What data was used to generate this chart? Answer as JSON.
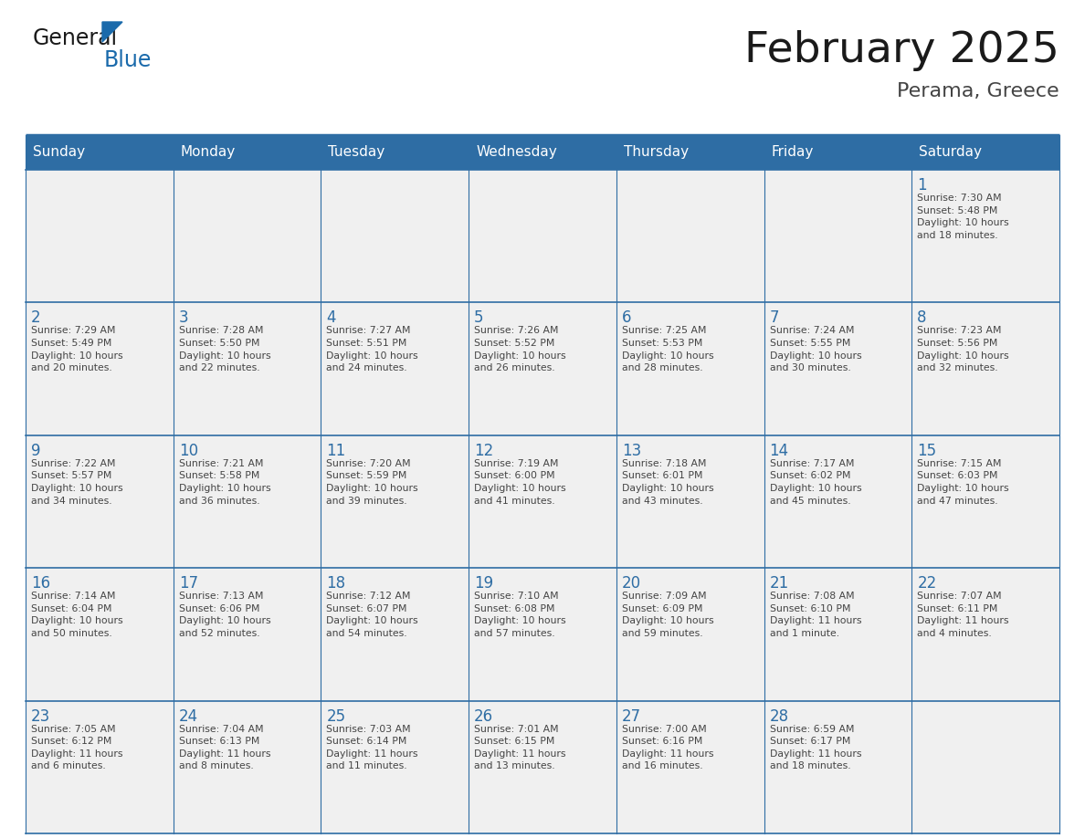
{
  "title": "February 2025",
  "subtitle": "Perama, Greece",
  "days_of_week": [
    "Sunday",
    "Monday",
    "Tuesday",
    "Wednesday",
    "Thursday",
    "Friday",
    "Saturday"
  ],
  "header_bg_color": "#2E6DA4",
  "header_text_color": "#FFFFFF",
  "cell_bg_color": "#F0F0F0",
  "day_num_color": "#2E6DA4",
  "info_text_color": "#444444",
  "border_color": "#2E6DA4",
  "title_color": "#1a1a1a",
  "subtitle_color": "#444444",
  "weeks": [
    [
      {
        "day": null,
        "info": null
      },
      {
        "day": null,
        "info": null
      },
      {
        "day": null,
        "info": null
      },
      {
        "day": null,
        "info": null
      },
      {
        "day": null,
        "info": null
      },
      {
        "day": null,
        "info": null
      },
      {
        "day": 1,
        "info": "Sunrise: 7:30 AM\nSunset: 5:48 PM\nDaylight: 10 hours\nand 18 minutes."
      }
    ],
    [
      {
        "day": 2,
        "info": "Sunrise: 7:29 AM\nSunset: 5:49 PM\nDaylight: 10 hours\nand 20 minutes."
      },
      {
        "day": 3,
        "info": "Sunrise: 7:28 AM\nSunset: 5:50 PM\nDaylight: 10 hours\nand 22 minutes."
      },
      {
        "day": 4,
        "info": "Sunrise: 7:27 AM\nSunset: 5:51 PM\nDaylight: 10 hours\nand 24 minutes."
      },
      {
        "day": 5,
        "info": "Sunrise: 7:26 AM\nSunset: 5:52 PM\nDaylight: 10 hours\nand 26 minutes."
      },
      {
        "day": 6,
        "info": "Sunrise: 7:25 AM\nSunset: 5:53 PM\nDaylight: 10 hours\nand 28 minutes."
      },
      {
        "day": 7,
        "info": "Sunrise: 7:24 AM\nSunset: 5:55 PM\nDaylight: 10 hours\nand 30 minutes."
      },
      {
        "day": 8,
        "info": "Sunrise: 7:23 AM\nSunset: 5:56 PM\nDaylight: 10 hours\nand 32 minutes."
      }
    ],
    [
      {
        "day": 9,
        "info": "Sunrise: 7:22 AM\nSunset: 5:57 PM\nDaylight: 10 hours\nand 34 minutes."
      },
      {
        "day": 10,
        "info": "Sunrise: 7:21 AM\nSunset: 5:58 PM\nDaylight: 10 hours\nand 36 minutes."
      },
      {
        "day": 11,
        "info": "Sunrise: 7:20 AM\nSunset: 5:59 PM\nDaylight: 10 hours\nand 39 minutes."
      },
      {
        "day": 12,
        "info": "Sunrise: 7:19 AM\nSunset: 6:00 PM\nDaylight: 10 hours\nand 41 minutes."
      },
      {
        "day": 13,
        "info": "Sunrise: 7:18 AM\nSunset: 6:01 PM\nDaylight: 10 hours\nand 43 minutes."
      },
      {
        "day": 14,
        "info": "Sunrise: 7:17 AM\nSunset: 6:02 PM\nDaylight: 10 hours\nand 45 minutes."
      },
      {
        "day": 15,
        "info": "Sunrise: 7:15 AM\nSunset: 6:03 PM\nDaylight: 10 hours\nand 47 minutes."
      }
    ],
    [
      {
        "day": 16,
        "info": "Sunrise: 7:14 AM\nSunset: 6:04 PM\nDaylight: 10 hours\nand 50 minutes."
      },
      {
        "day": 17,
        "info": "Sunrise: 7:13 AM\nSunset: 6:06 PM\nDaylight: 10 hours\nand 52 minutes."
      },
      {
        "day": 18,
        "info": "Sunrise: 7:12 AM\nSunset: 6:07 PM\nDaylight: 10 hours\nand 54 minutes."
      },
      {
        "day": 19,
        "info": "Sunrise: 7:10 AM\nSunset: 6:08 PM\nDaylight: 10 hours\nand 57 minutes."
      },
      {
        "day": 20,
        "info": "Sunrise: 7:09 AM\nSunset: 6:09 PM\nDaylight: 10 hours\nand 59 minutes."
      },
      {
        "day": 21,
        "info": "Sunrise: 7:08 AM\nSunset: 6:10 PM\nDaylight: 11 hours\nand 1 minute."
      },
      {
        "day": 22,
        "info": "Sunrise: 7:07 AM\nSunset: 6:11 PM\nDaylight: 11 hours\nand 4 minutes."
      }
    ],
    [
      {
        "day": 23,
        "info": "Sunrise: 7:05 AM\nSunset: 6:12 PM\nDaylight: 11 hours\nand 6 minutes."
      },
      {
        "day": 24,
        "info": "Sunrise: 7:04 AM\nSunset: 6:13 PM\nDaylight: 11 hours\nand 8 minutes."
      },
      {
        "day": 25,
        "info": "Sunrise: 7:03 AM\nSunset: 6:14 PM\nDaylight: 11 hours\nand 11 minutes."
      },
      {
        "day": 26,
        "info": "Sunrise: 7:01 AM\nSunset: 6:15 PM\nDaylight: 11 hours\nand 13 minutes."
      },
      {
        "day": 27,
        "info": "Sunrise: 7:00 AM\nSunset: 6:16 PM\nDaylight: 11 hours\nand 16 minutes."
      },
      {
        "day": 28,
        "info": "Sunrise: 6:59 AM\nSunset: 6:17 PM\nDaylight: 11 hours\nand 18 minutes."
      },
      {
        "day": null,
        "info": null
      }
    ]
  ],
  "logo_text1": "General",
  "logo_text2": "Blue",
  "logo_color1": "#1a1a1a",
  "logo_color2": "#1a6aab",
  "logo_triangle_color": "#1a6aab",
  "fig_width": 11.88,
  "fig_height": 9.18,
  "dpi": 100
}
